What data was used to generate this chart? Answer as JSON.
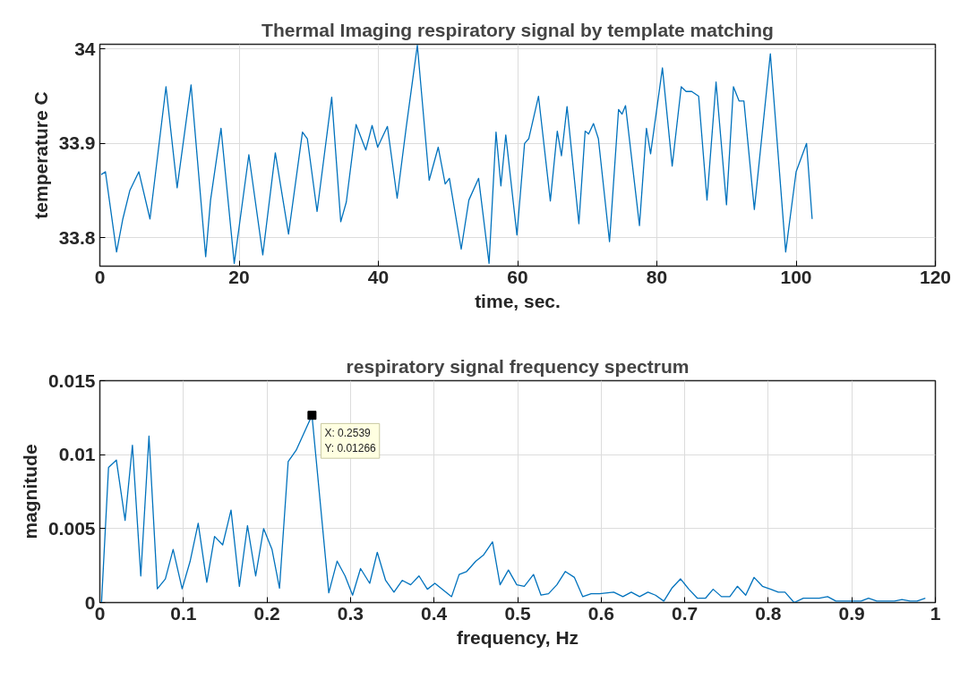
{
  "chart_data": [
    {
      "type": "line",
      "title": "Thermal Imaging respiratory signal by template matching",
      "xlabel": "time, sec.",
      "ylabel": "temperature C",
      "xlim": [
        0,
        120
      ],
      "ylim": [
        33.77,
        34.005
      ],
      "xticks": [
        0,
        20,
        40,
        60,
        80,
        100,
        120
      ],
      "yticks": [
        33.8,
        33.9,
        34
      ],
      "grid": true,
      "series": [
        {
          "color": "#0072bd",
          "x": [
            0.2,
            0.8,
            2.4,
            3.3,
            4.3,
            5.6,
            7.2,
            9.5,
            11.1,
            13.1,
            15.2,
            15.9,
            17.4,
            19.3,
            21.4,
            23.4,
            25.2,
            27.1,
            29.1,
            29.8,
            31.2,
            33.3,
            34.6,
            35.4,
            36.8,
            38.2,
            39.1,
            39.9,
            41.3,
            42.7,
            44.0,
            45.6,
            47.3,
            48.6,
            49.6,
            50.2,
            51.9,
            53.0,
            54.4,
            55.9,
            56.9,
            57.6,
            58.3,
            59.9,
            61.0,
            61.6,
            63.0,
            64.7,
            65.7,
            66.3,
            67.1,
            68.8,
            69.7,
            70.2,
            70.9,
            71.6,
            73.2,
            74.5,
            75.0,
            75.5,
            77.5,
            78.5,
            79.1,
            80.8,
            82.2,
            83.5,
            84.2,
            85.0,
            86.0,
            87.2,
            88.5,
            90.0,
            91.0,
            91.8,
            92.5,
            94.0,
            96.3,
            98.5,
            100.0,
            101.5,
            102.3
          ],
          "values": [
            33.867,
            33.87,
            33.785,
            33.82,
            33.85,
            33.87,
            33.82,
            33.96,
            33.853,
            33.962,
            33.78,
            33.84,
            33.916,
            33.773,
            33.888,
            33.782,
            33.89,
            33.804,
            33.912,
            33.905,
            33.828,
            33.949,
            33.817,
            33.838,
            33.92,
            33.893,
            33.919,
            33.896,
            33.918,
            33.842,
            33.917,
            34.004,
            33.861,
            33.896,
            33.857,
            33.863,
            33.788,
            33.84,
            33.863,
            33.773,
            33.912,
            33.855,
            33.909,
            33.803,
            33.9,
            33.905,
            33.95,
            33.839,
            33.913,
            33.887,
            33.939,
            33.815,
            33.913,
            33.91,
            33.921,
            33.905,
            33.796,
            33.936,
            33.931,
            33.94,
            33.813,
            33.916,
            33.889,
            33.98,
            33.876,
            33.96,
            33.955,
            33.955,
            33.95,
            33.84,
            33.965,
            33.835,
            33.96,
            33.945,
            33.945,
            33.83,
            33.995,
            33.785,
            33.87,
            33.9,
            33.82
          ]
        }
      ]
    },
    {
      "type": "line",
      "title": "respiratory signal frequency spectrum",
      "xlabel": "frequency, Hz",
      "ylabel": "magnitude",
      "xlim": [
        0,
        1
      ],
      "ylim": [
        0,
        0.015
      ],
      "xticks": [
        0,
        0.1,
        0.2,
        0.3,
        0.4,
        0.5,
        0.6,
        0.7,
        0.8,
        0.9,
        1
      ],
      "yticks": [
        0,
        0.005,
        0.01,
        0.015
      ],
      "grid": true,
      "annotations": [
        {
          "text": "X: 0.2539\nY: 0.01266",
          "x": 0.2539,
          "y": 0.01266
        }
      ],
      "series": [
        {
          "color": "#0072bd",
          "x": [
            0.002,
            0.0104,
            0.0198,
            0.0302,
            0.039,
            0.049,
            0.0588,
            0.0688,
            0.0784,
            0.0877,
            0.0985,
            0.108,
            0.1177,
            0.128,
            0.1373,
            0.147,
            0.157,
            0.167,
            0.1767,
            0.1865,
            0.196,
            0.206,
            0.215,
            0.2254,
            0.235,
            0.2539,
            0.274,
            0.284,
            0.2935,
            0.3025,
            0.312,
            0.323,
            0.332,
            0.342,
            0.352,
            0.362,
            0.372,
            0.382,
            0.392,
            0.401,
            0.421,
            0.43,
            0.439,
            0.45,
            0.459,
            0.47,
            0.479,
            0.489,
            0.499,
            0.508,
            0.519,
            0.528,
            0.537,
            0.547,
            0.557,
            0.568,
            0.578,
            0.588,
            0.598,
            0.615,
            0.626,
            0.636,
            0.646,
            0.656,
            0.665,
            0.675,
            0.685,
            0.695,
            0.705,
            0.715,
            0.725,
            0.734,
            0.744,
            0.754,
            0.763,
            0.773,
            0.783,
            0.793,
            0.803,
            0.812,
            0.82,
            0.831,
            0.842,
            0.851,
            0.861,
            0.871,
            0.881,
            0.891,
            0.902,
            0.911,
            0.92,
            0.93,
            0.941,
            0.951,
            0.96,
            0.97,
            0.978,
            0.988
          ],
          "values": [
            0,
            0.00913,
            0.00963,
            0.00556,
            0.01064,
            0.0018,
            0.01125,
            0.00093,
            0.0016,
            0.00359,
            0.00093,
            0.00278,
            0.00536,
            0.00137,
            0.00447,
            0.0039,
            0.00625,
            0.0011,
            0.0052,
            0.0018,
            0.005,
            0.0036,
            0.00097,
            0.00953,
            0.0103,
            0.01266,
            0.00066,
            0.0028,
            0.0018,
            0.0005,
            0.0023,
            0.0013,
            0.0034,
            0.0015,
            0.0007,
            0.0015,
            0.0012,
            0.0018,
            0.0009,
            0.0013,
            0.0004,
            0.0019,
            0.0021,
            0.0028,
            0.0032,
            0.0041,
            0.0012,
            0.0022,
            0.0012,
            0.0011,
            0.0019,
            0.0005,
            0.0006,
            0.0012,
            0.0021,
            0.0017,
            0.0004,
            0.0006,
            0.0006,
            0.0007,
            0.0004,
            0.0007,
            0.0004,
            0.0007,
            0.0005,
            0.0001,
            0.001,
            0.0016,
            0.0009,
            0.0003,
            0.0003,
            0.0009,
            0.0004,
            0.0004,
            0.0011,
            0.0005,
            0.0017,
            0.0011,
            0.0009,
            0.0007,
            0.0007,
            0,
            0.0003,
            0.0003,
            0.0003,
            0.0004,
            0.0001,
            0.0001,
            0.0001,
            0.0001,
            0.0003,
            0.0001,
            0.0001,
            0.0001,
            0.0002,
            0.0001,
            0.0001,
            0.0003
          ]
        }
      ]
    }
  ]
}
